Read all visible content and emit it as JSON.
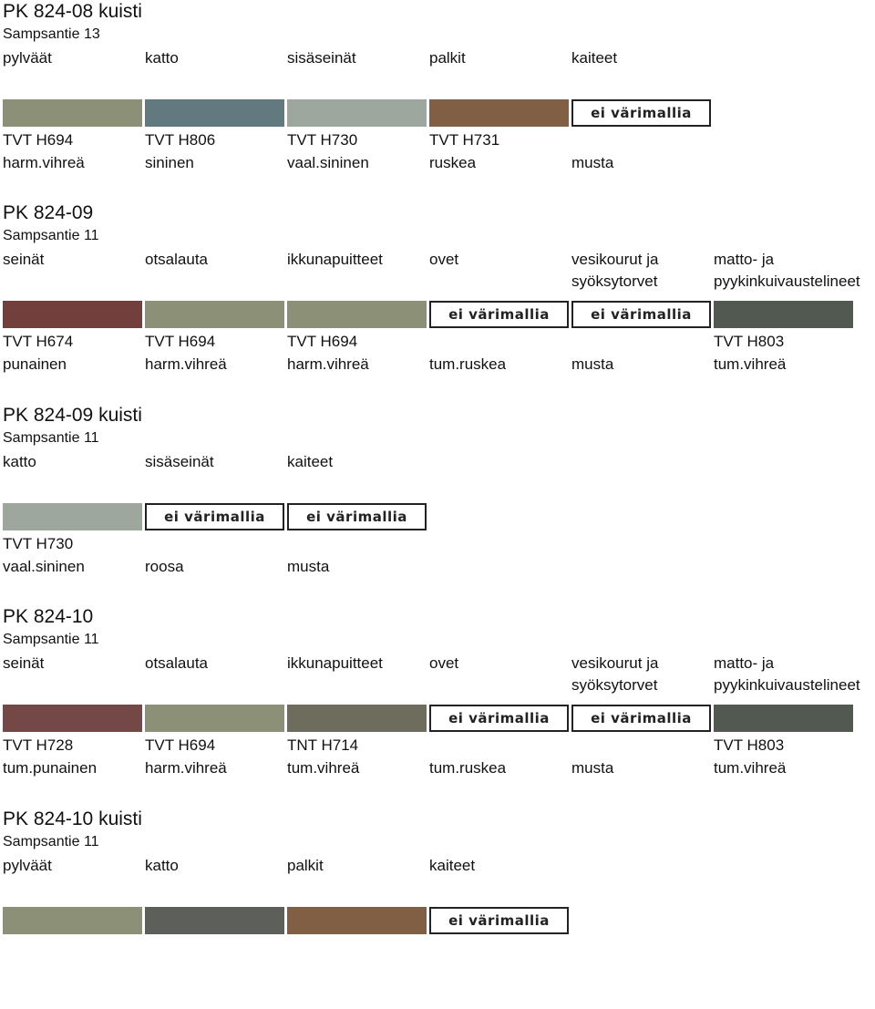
{
  "sections": [
    {
      "title": "PK 824-08 kuisti",
      "address": "Sampsantie 13",
      "labels": [
        "pylväät",
        "katto",
        "sisäseinät",
        "palkit",
        "kaiteet",
        ""
      ],
      "labels2": [
        "",
        "",
        "",
        "",
        "",
        ""
      ],
      "swatches": [
        "#8c9077",
        "#637980",
        "#9ea79d",
        "#805f45",
        "no-sample"
      ],
      "codes": [
        "TVT H694",
        "TVT H806",
        "TVT H730",
        "TVT H731",
        "",
        ""
      ],
      "colors": [
        "harm.vihreä",
        "sininen",
        "vaal.sininen",
        "ruskea",
        "musta",
        ""
      ]
    },
    {
      "title": "PK 824-09",
      "address": "Sampsantie 11",
      "labels": [
        "seinät",
        "otsalauta",
        "ikkunapuitteet",
        "ovet",
        "vesikourut ja",
        "matto- ja"
      ],
      "labels2": [
        "",
        "",
        "",
        "",
        "syöksytorvet",
        "pyykinkuivaustelineet"
      ],
      "swatches": [
        "#733f3d",
        "#8c9077",
        "#8c9077",
        "no-sample",
        "no-sample",
        "#525951"
      ],
      "codes": [
        "TVT H674",
        "TVT H694",
        "TVT H694",
        "",
        "",
        "TVT H803"
      ],
      "colors": [
        "punainen",
        "harm.vihreä",
        "harm.vihreä",
        "tum.ruskea",
        "musta",
        "tum.vihreä"
      ]
    },
    {
      "title": "PK 824-09 kuisti",
      "address": "Sampsantie 11",
      "labels": [
        "katto",
        "sisäseinät",
        "kaiteet",
        "",
        "",
        ""
      ],
      "labels2": [
        "",
        "",
        "",
        "",
        "",
        ""
      ],
      "swatches": [
        "#9ea79d",
        "no-sample",
        "no-sample"
      ],
      "codes": [
        "TVT H730",
        "",
        "",
        "",
        "",
        ""
      ],
      "colors": [
        "vaal.sininen",
        "roosa",
        "musta",
        "",
        "",
        ""
      ]
    },
    {
      "title": "PK 824-10",
      "address": "Sampsantie 11",
      "labels": [
        "seinät",
        "otsalauta",
        "ikkunapuitteet",
        "ovet",
        "vesikourut ja",
        "matto- ja"
      ],
      "labels2": [
        "",
        "",
        "",
        "",
        "syöksytorvet",
        "pyykinkuivaustelineet"
      ],
      "swatches": [
        "#744846",
        "#8c9077",
        "#6e6d5d",
        "no-sample",
        "no-sample",
        "#525951"
      ],
      "codes": [
        "TVT H728",
        "TVT H694",
        "TNT H714",
        "",
        "",
        "TVT H803"
      ],
      "colors": [
        "tum.punainen",
        "harm.vihreä",
        "tum.vihreä",
        "tum.ruskea",
        "musta",
        "tum.vihreä"
      ]
    },
    {
      "title": "PK 824-10 kuisti",
      "address": "Sampsantie 11",
      "labels": [
        "pylväät",
        "katto",
        "palkit",
        "kaiteet",
        "",
        ""
      ],
      "labels2": [
        "",
        "",
        "",
        "",
        "",
        ""
      ],
      "swatches": [
        "#8c9077",
        "#5d605a",
        "#805f45",
        "no-sample"
      ],
      "codes": [
        "",
        "",
        "",
        "",
        "",
        ""
      ],
      "colors": [
        "",
        "",
        "",
        "",
        "",
        ""
      ]
    }
  ],
  "no_sample_label": "ei värimallia"
}
